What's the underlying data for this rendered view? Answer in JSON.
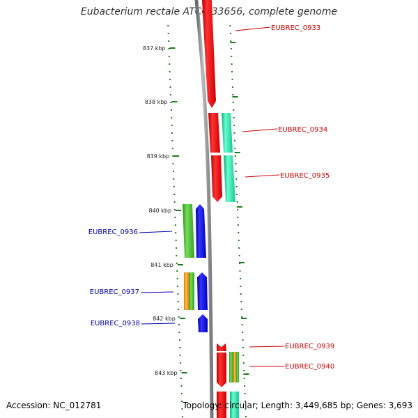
{
  "title": "Eubacterium rectale ATCC 33656, complete genome",
  "accession": "Accession: NC_012781",
  "summary": "Topology: circular; Length: 3,449,685 bp; Genes: 3,693",
  "colors": {
    "forward_label": "#cc0000",
    "reverse_label": "#0000aa",
    "backbone": "#888888",
    "tick": "#1a7a1a",
    "red": "#ee0000",
    "teal": "#22ddaa",
    "green": "#44bb33",
    "blue": "#1111dd",
    "orange": "#ff9900"
  },
  "axis_labels": [
    "837 kbp",
    "838 kbp",
    "839 kbp",
    "840 kbp",
    "841 kbp",
    "842 kbp",
    "843 kbp"
  ],
  "gene_labels": {
    "forward": [
      "EUBREC_0933",
      "EUBREC_0934",
      "EUBREC_0935",
      "EUBREC_0939",
      "EUBREC_0940"
    ],
    "reverse": [
      "EUBREC_0936",
      "EUBREC_0937",
      "EUBREC_0938"
    ]
  }
}
